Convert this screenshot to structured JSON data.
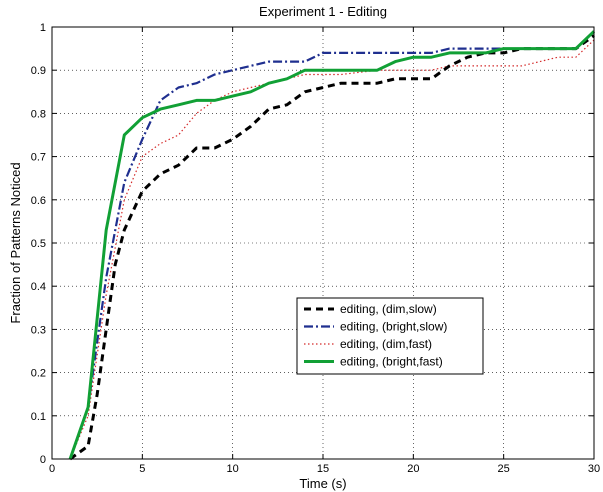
{
  "chart_data": {
    "type": "line",
    "title": "Experiment 1 - Editing",
    "xlabel": "Time (s)",
    "ylabel": "Fraction of Patterns Noticed",
    "xlim": [
      0,
      30
    ],
    "ylim": [
      0,
      1
    ],
    "xticks": [
      0,
      5,
      10,
      15,
      20,
      25,
      30
    ],
    "yticks": [
      0,
      0.1,
      0.2,
      0.3,
      0.4,
      0.5,
      0.6,
      0.7,
      0.8,
      0.9,
      1
    ],
    "grid": true,
    "legend_position": "lower-right",
    "series": [
      {
        "name": "editing, (dim,slow)",
        "color": "#000000",
        "dash": "dashed",
        "points": [
          [
            1,
            0
          ],
          [
            2,
            0.03
          ],
          [
            2.5,
            0.15
          ],
          [
            3,
            0.3
          ],
          [
            3.5,
            0.45
          ],
          [
            4,
            0.53
          ],
          [
            5,
            0.62
          ],
          [
            5.5,
            0.64
          ],
          [
            6,
            0.66
          ],
          [
            7,
            0.68
          ],
          [
            8,
            0.72
          ],
          [
            9,
            0.72
          ],
          [
            10,
            0.74
          ],
          [
            11,
            0.77
          ],
          [
            12,
            0.81
          ],
          [
            13,
            0.82
          ],
          [
            14,
            0.85
          ],
          [
            15,
            0.86
          ],
          [
            16,
            0.87
          ],
          [
            18,
            0.87
          ],
          [
            19,
            0.88
          ],
          [
            21,
            0.88
          ],
          [
            22,
            0.91
          ],
          [
            23,
            0.93
          ],
          [
            24,
            0.94
          ],
          [
            25,
            0.94
          ],
          [
            26,
            0.95
          ],
          [
            29,
            0.95
          ],
          [
            30,
            0.98
          ]
        ]
      },
      {
        "name": "editing, (bright,slow)",
        "color": "#1f2f8f",
        "dash": "dashdot",
        "points": [
          [
            1,
            0
          ],
          [
            2,
            0.12
          ],
          [
            3,
            0.42
          ],
          [
            4,
            0.64
          ],
          [
            5,
            0.74
          ],
          [
            6,
            0.83
          ],
          [
            7,
            0.86
          ],
          [
            8,
            0.87
          ],
          [
            9,
            0.89
          ],
          [
            10,
            0.9
          ],
          [
            11,
            0.91
          ],
          [
            12,
            0.92
          ],
          [
            14,
            0.92
          ],
          [
            15,
            0.94
          ],
          [
            21,
            0.94
          ],
          [
            22,
            0.95
          ],
          [
            26,
            0.95
          ],
          [
            29,
            0.95
          ],
          [
            30,
            0.99
          ]
        ]
      },
      {
        "name": "editing, (dim,fast)",
        "color": "#d42a2a",
        "dash": "dotted",
        "points": [
          [
            1,
            0
          ],
          [
            2,
            0.1
          ],
          [
            3,
            0.38
          ],
          [
            4,
            0.6
          ],
          [
            5,
            0.7
          ],
          [
            6,
            0.73
          ],
          [
            7,
            0.75
          ],
          [
            8,
            0.8
          ],
          [
            9,
            0.83
          ],
          [
            10,
            0.85
          ],
          [
            11,
            0.86
          ],
          [
            12,
            0.87
          ],
          [
            13,
            0.88
          ],
          [
            14,
            0.89
          ],
          [
            16,
            0.89
          ],
          [
            18,
            0.9
          ],
          [
            21,
            0.9
          ],
          [
            22,
            0.91
          ],
          [
            26,
            0.91
          ],
          [
            27,
            0.92
          ],
          [
            28,
            0.93
          ],
          [
            29,
            0.93
          ],
          [
            30,
            0.97
          ]
        ]
      },
      {
        "name": "editing, (bright,fast)",
        "color": "#11a035",
        "dash": "solid",
        "points": [
          [
            1,
            0
          ],
          [
            2,
            0.12
          ],
          [
            3,
            0.53
          ],
          [
            4,
            0.75
          ],
          [
            5,
            0.79
          ],
          [
            6,
            0.81
          ],
          [
            7,
            0.82
          ],
          [
            8,
            0.83
          ],
          [
            9,
            0.83
          ],
          [
            10,
            0.84
          ],
          [
            11,
            0.85
          ],
          [
            12,
            0.87
          ],
          [
            13,
            0.88
          ],
          [
            14,
            0.9
          ],
          [
            18,
            0.9
          ],
          [
            19,
            0.92
          ],
          [
            20,
            0.93
          ],
          [
            21,
            0.93
          ],
          [
            22,
            0.94
          ],
          [
            24,
            0.94
          ],
          [
            25,
            0.95
          ],
          [
            29,
            0.95
          ],
          [
            30,
            0.99
          ]
        ]
      }
    ]
  }
}
